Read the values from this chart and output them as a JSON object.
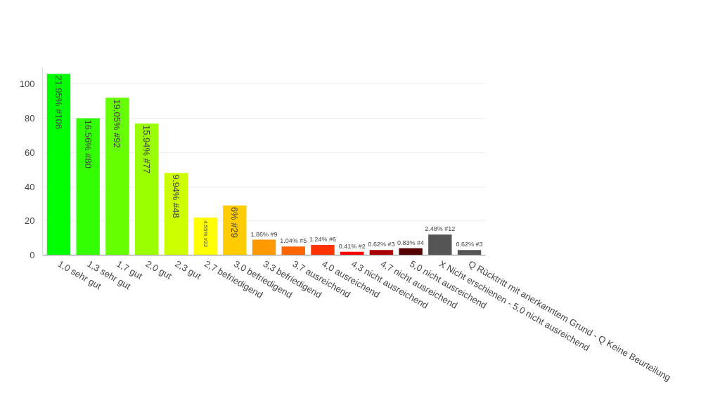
{
  "chart_data": {
    "type": "bar",
    "categories": [
      "1,0 sehr gut",
      "1,3 sehr gut",
      "1,7 gut",
      "2,0 gut",
      "2,3 gut",
      "2,7 befriedigend",
      "3,0 befriedigend",
      "3,3 befriedigend",
      "3,7 ausreichend",
      "4,0 ausreichend",
      "4,3 nicht ausreichend",
      "4,7 nicht ausreichend",
      "5,0 nicht ausreichend",
      "X Nicht erschienen - 5,0 nicht ausreichend",
      "Q Rücktritt mit anerkanntem Grund - Q Keine Beurteilung"
    ],
    "values": [
      106,
      80,
      92,
      77,
      48,
      22,
      29,
      9,
      5,
      6,
      2,
      3,
      4,
      12,
      3
    ],
    "colors": [
      "#00ff00",
      "#33ff00",
      "#66ff00",
      "#99ff00",
      "#ccff00",
      "#ffff00",
      "#ffcc00",
      "#ff9900",
      "#ff6600",
      "#ff3300",
      "#ff0000",
      "#aa0000",
      "#550000",
      "#555555",
      "#555555"
    ],
    "value_labels": [
      "21.95% #106",
      "16.56% #80",
      "19.05% #92",
      "15.94% #77",
      "9.94% #48",
      "4.55% #22",
      "6% #29",
      "1.86% #9",
      "1.04% #5",
      "1.24% #6",
      "0.41% #2",
      "0.62% #3",
      "0.83% #4",
      "2.48% #12",
      "0.62% #3"
    ],
    "ylim": [
      0,
      110
    ],
    "yticks": [
      0,
      20,
      40,
      60,
      80,
      100
    ],
    "grid": "y"
  }
}
